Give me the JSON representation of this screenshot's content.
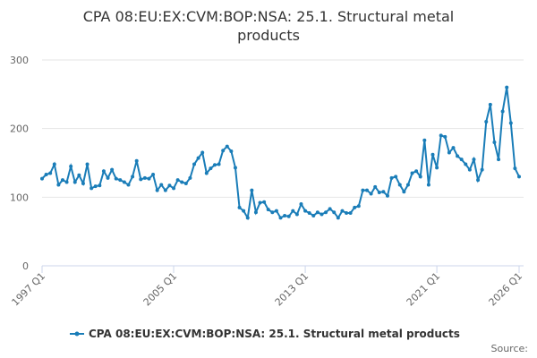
{
  "chart_data": {
    "type": "line",
    "title": "CPA 08:EU:EX:CVM:BOP:NSA: 25.1. Structural metal products",
    "categories": [
      "1997 Q1",
      null,
      null,
      null,
      null,
      null,
      null,
      null,
      null,
      null,
      null,
      null,
      null,
      null,
      null,
      null,
      null,
      null,
      null,
      null,
      null,
      null,
      null,
      null,
      null,
      null,
      null,
      null,
      null,
      null,
      null,
      null,
      "2005 Q1",
      null,
      null,
      null,
      null,
      null,
      null,
      null,
      null,
      null,
      null,
      null,
      null,
      null,
      null,
      null,
      null,
      null,
      null,
      null,
      null,
      null,
      null,
      null,
      null,
      null,
      null,
      null,
      null,
      null,
      null,
      null,
      "2013 Q1",
      null,
      null,
      null,
      null,
      null,
      null,
      null,
      null,
      null,
      null,
      null,
      null,
      null,
      null,
      null,
      null,
      null,
      null,
      null,
      null,
      null,
      null,
      null,
      null,
      null,
      null,
      null,
      null,
      null,
      null,
      null,
      "2021 Q1",
      null,
      null,
      null,
      null,
      null,
      null,
      null,
      null,
      null,
      null,
      null,
      null,
      null,
      null,
      null,
      null,
      null,
      null,
      null,
      "2026 Q1"
    ],
    "series": [
      {
        "name": "CPA 08:EU:EX:CVM:BOP:NSA: 25.1. Structural metal products",
        "color": "#1a7db8",
        "values": [
          127,
          133,
          135,
          148,
          118,
          125,
          122,
          145,
          122,
          132,
          120,
          148,
          113,
          116,
          117,
          138,
          128,
          140,
          127,
          125,
          122,
          118,
          130,
          153,
          126,
          128,
          127,
          133,
          110,
          118,
          110,
          117,
          113,
          125,
          122,
          120,
          128,
          148,
          157,
          165,
          135,
          142,
          147,
          148,
          168,
          174,
          167,
          143,
          85,
          80,
          70,
          110,
          78,
          92,
          93,
          82,
          78,
          80,
          70,
          73,
          72,
          80,
          75,
          90,
          80,
          77,
          73,
          78,
          75,
          78,
          83,
          78,
          70,
          80,
          77,
          77,
          85,
          87,
          110,
          110,
          105,
          115,
          107,
          108,
          102,
          128,
          130,
          118,
          108,
          118,
          135,
          138,
          130,
          183,
          118,
          162,
          143,
          190,
          188,
          165,
          172,
          160,
          155,
          148,
          140,
          155,
          125,
          140,
          210,
          235,
          180,
          155,
          225,
          260,
          208,
          142,
          130
        ]
      }
    ],
    "ylim": [
      0,
      300
    ],
    "yticks": [
      0,
      100,
      200,
      300
    ],
    "grid": true,
    "source": "Source:"
  }
}
